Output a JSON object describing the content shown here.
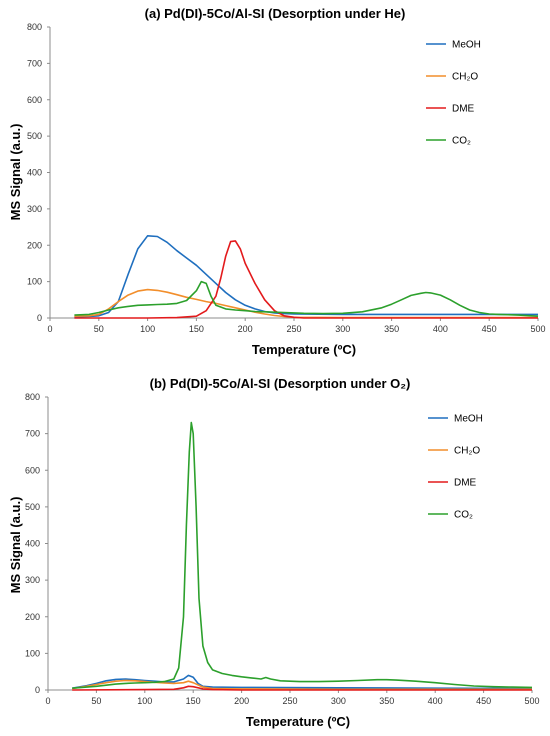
{
  "chart_data": [
    {
      "type": "line",
      "title": "(a)   Pd(DI)-5Co/Al-SI (Desorption under He)",
      "xlabel": "Temperature (ºC)",
      "ylabel": "MS Signal (a.u.)",
      "xlim": [
        0,
        500
      ],
      "ylim": [
        0,
        800
      ],
      "xticks": [
        "0",
        "50",
        "100",
        "150",
        "200",
        "250",
        "300",
        "350",
        "400",
        "450",
        "500"
      ],
      "yticks": [
        "0",
        "100",
        "200",
        "300",
        "400",
        "500",
        "600",
        "700",
        "800"
      ],
      "legend_position": "top-right",
      "grid": false,
      "series": [
        {
          "name": "MeOH",
          "color": "#1f6fbf",
          "points": [
            [
              25,
              3
            ],
            [
              40,
              4
            ],
            [
              50,
              6
            ],
            [
              60,
              15
            ],
            [
              70,
              45
            ],
            [
              80,
              120
            ],
            [
              90,
              190
            ],
            [
              100,
              226
            ],
            [
              110,
              224
            ],
            [
              120,
              208
            ],
            [
              130,
              185
            ],
            [
              140,
              165
            ],
            [
              150,
              145
            ],
            [
              160,
              120
            ],
            [
              170,
              95
            ],
            [
              180,
              70
            ],
            [
              190,
              50
            ],
            [
              200,
              35
            ],
            [
              210,
              25
            ],
            [
              220,
              18
            ],
            [
              230,
              14
            ],
            [
              240,
              12
            ],
            [
              250,
              11
            ],
            [
              300,
              10
            ],
            [
              350,
              10
            ],
            [
              400,
              10
            ],
            [
              450,
              10
            ],
            [
              500,
              10
            ]
          ]
        },
        {
          "name": "CH₂O",
          "color": "#f28e2b",
          "points": [
            [
              25,
              5
            ],
            [
              40,
              6
            ],
            [
              50,
              10
            ],
            [
              60,
              25
            ],
            [
              70,
              45
            ],
            [
              80,
              63
            ],
            [
              90,
              74
            ],
            [
              100,
              78
            ],
            [
              110,
              76
            ],
            [
              120,
              71
            ],
            [
              130,
              64
            ],
            [
              140,
              57
            ],
            [
              150,
              51
            ],
            [
              160,
              45
            ],
            [
              170,
              40
            ],
            [
              180,
              34
            ],
            [
              190,
              28
            ],
            [
              200,
              22
            ],
            [
              210,
              16
            ],
            [
              220,
              11
            ],
            [
              230,
              7
            ],
            [
              240,
              4
            ],
            [
              250,
              2
            ],
            [
              300,
              1
            ],
            [
              350,
              1
            ],
            [
              400,
              1
            ],
            [
              450,
              1
            ],
            [
              500,
              1
            ]
          ]
        },
        {
          "name": "DME",
          "color": "#e31a1c",
          "points": [
            [
              25,
              0
            ],
            [
              100,
              0
            ],
            [
              130,
              1
            ],
            [
              150,
              5
            ],
            [
              160,
              20
            ],
            [
              170,
              60
            ],
            [
              175,
              110
            ],
            [
              180,
              170
            ],
            [
              185,
              210
            ],
            [
              190,
              212
            ],
            [
              195,
              190
            ],
            [
              200,
              150
            ],
            [
              210,
              95
            ],
            [
              220,
              50
            ],
            [
              230,
              20
            ],
            [
              240,
              6
            ],
            [
              250,
              2
            ],
            [
              260,
              0
            ],
            [
              300,
              0
            ],
            [
              400,
              0
            ],
            [
              500,
              0
            ]
          ]
        },
        {
          "name": "CO₂",
          "color": "#2ca02c",
          "points": [
            [
              25,
              8
            ],
            [
              40,
              10
            ],
            [
              50,
              15
            ],
            [
              60,
              22
            ],
            [
              70,
              28
            ],
            [
              80,
              32
            ],
            [
              90,
              35
            ],
            [
              100,
              36
            ],
            [
              110,
              37
            ],
            [
              120,
              38
            ],
            [
              130,
              40
            ],
            [
              140,
              48
            ],
            [
              150,
              75
            ],
            [
              155,
              100
            ],
            [
              160,
              95
            ],
            [
              165,
              60
            ],
            [
              170,
              35
            ],
            [
              180,
              25
            ],
            [
              190,
              22
            ],
            [
              200,
              20
            ],
            [
              210,
              18
            ],
            [
              220,
              17
            ],
            [
              230,
              16
            ],
            [
              240,
              15
            ],
            [
              250,
              14
            ],
            [
              260,
              13
            ],
            [
              280,
              12
            ],
            [
              300,
              13
            ],
            [
              320,
              17
            ],
            [
              340,
              28
            ],
            [
              350,
              38
            ],
            [
              360,
              50
            ],
            [
              370,
              62
            ],
            [
              380,
              68
            ],
            [
              385,
              70
            ],
            [
              390,
              69
            ],
            [
              400,
              63
            ],
            [
              410,
              50
            ],
            [
              420,
              35
            ],
            [
              430,
              22
            ],
            [
              440,
              15
            ],
            [
              450,
              11
            ],
            [
              460,
              10
            ],
            [
              480,
              8
            ],
            [
              500,
              5
            ]
          ]
        }
      ]
    },
    {
      "type": "line",
      "title": "(b)    Pd(DI)-5Co/Al-SI (Desorption under O₂)",
      "xlabel": "Temperature (ºC)",
      "ylabel": "MS Signal (a.u.)",
      "xlim": [
        0,
        500
      ],
      "ylim": [
        0,
        800
      ],
      "xticks": [
        "0",
        "50",
        "100",
        "150",
        "200",
        "250",
        "300",
        "350",
        "400",
        "450",
        "500"
      ],
      "yticks": [
        "0",
        "100",
        "200",
        "300",
        "400",
        "500",
        "600",
        "700",
        "800"
      ],
      "legend_position": "top-right",
      "grid": false,
      "series": [
        {
          "name": "MeOH",
          "color": "#1f6fbf",
          "points": [
            [
              25,
              5
            ],
            [
              40,
              12
            ],
            [
              50,
              18
            ],
            [
              60,
              25
            ],
            [
              70,
              29
            ],
            [
              80,
              30
            ],
            [
              90,
              28
            ],
            [
              100,
              26
            ],
            [
              110,
              24
            ],
            [
              120,
              22
            ],
            [
              130,
              22
            ],
            [
              140,
              30
            ],
            [
              145,
              40
            ],
            [
              150,
              35
            ],
            [
              155,
              18
            ],
            [
              160,
              10
            ],
            [
              170,
              8
            ],
            [
              200,
              7
            ],
            [
              300,
              6
            ],
            [
              400,
              5
            ],
            [
              500,
              4
            ]
          ]
        },
        {
          "name": "CH₂O",
          "color": "#f28e2b",
          "points": [
            [
              25,
              4
            ],
            [
              40,
              10
            ],
            [
              50,
              15
            ],
            [
              60,
              20
            ],
            [
              70,
              24
            ],
            [
              80,
              26
            ],
            [
              90,
              25
            ],
            [
              100,
              23
            ],
            [
              110,
              21
            ],
            [
              120,
              19
            ],
            [
              130,
              18
            ],
            [
              140,
              20
            ],
            [
              145,
              24
            ],
            [
              150,
              20
            ],
            [
              160,
              8
            ],
            [
              170,
              4
            ],
            [
              200,
              3
            ],
            [
              300,
              2
            ],
            [
              400,
              2
            ],
            [
              500,
              2
            ]
          ]
        },
        {
          "name": "DME",
          "color": "#e31a1c",
          "points": [
            [
              25,
              0
            ],
            [
              100,
              1
            ],
            [
              130,
              2
            ],
            [
              140,
              6
            ],
            [
              145,
              10
            ],
            [
              150,
              9
            ],
            [
              160,
              3
            ],
            [
              170,
              1
            ],
            [
              200,
              0
            ],
            [
              300,
              0
            ],
            [
              400,
              0
            ],
            [
              500,
              0
            ]
          ]
        },
        {
          "name": "CO₂",
          "color": "#2ca02c",
          "points": [
            [
              25,
              5
            ],
            [
              40,
              8
            ],
            [
              50,
              10
            ],
            [
              60,
              13
            ],
            [
              70,
              16
            ],
            [
              80,
              18
            ],
            [
              90,
              19
            ],
            [
              100,
              20
            ],
            [
              110,
              21
            ],
            [
              120,
              23
            ],
            [
              130,
              30
            ],
            [
              135,
              60
            ],
            [
              140,
              200
            ],
            [
              143,
              450
            ],
            [
              146,
              650
            ],
            [
              148,
              730
            ],
            [
              150,
              700
            ],
            [
              153,
              500
            ],
            [
              156,
              250
            ],
            [
              160,
              120
            ],
            [
              165,
              75
            ],
            [
              170,
              55
            ],
            [
              180,
              45
            ],
            [
              190,
              40
            ],
            [
              200,
              36
            ],
            [
              210,
              33
            ],
            [
              220,
              30
            ],
            [
              225,
              34
            ],
            [
              230,
              30
            ],
            [
              240,
              25
            ],
            [
              250,
              24
            ],
            [
              260,
              23
            ],
            [
              280,
              23
            ],
            [
              300,
              24
            ],
            [
              320,
              26
            ],
            [
              340,
              28
            ],
            [
              350,
              28
            ],
            [
              360,
              27
            ],
            [
              380,
              24
            ],
            [
              400,
              20
            ],
            [
              420,
              15
            ],
            [
              440,
              11
            ],
            [
              460,
              9
            ],
            [
              480,
              8
            ],
            [
              500,
              7
            ]
          ]
        }
      ]
    }
  ]
}
